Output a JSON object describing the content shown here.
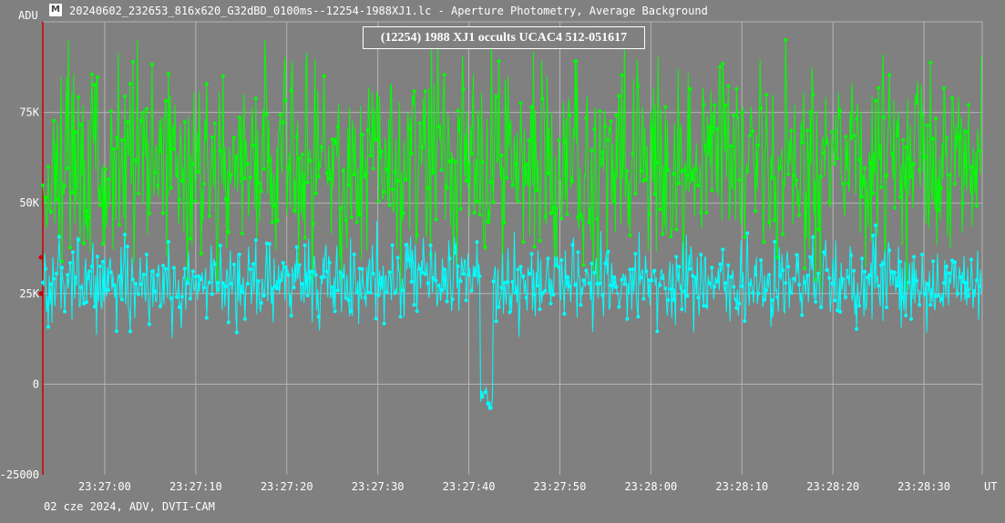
{
  "window": {
    "title": "20240602_232653_816x620_G32dBD_0100ms--12254-1988XJ1.lc - Aperture Photometry, Average Background",
    "icon": "lightcurve-app-icon"
  },
  "footer": "02 cze 2024, ADV, DVTI-CAM",
  "colors": {
    "background": "#808080",
    "grid": "#b4b4b4",
    "target_series": "#00ffff",
    "comparison_series": "#00ff00",
    "axis_marker": "#cc0000",
    "text": "#ffffff"
  },
  "chart_data": {
    "type": "line",
    "title": "(12254) 1988 XJ1 occults UCAC4 512-051617",
    "ylabel": "ADU",
    "xlabel": "UT",
    "ylim": [
      -25000,
      100000
    ],
    "xlim": [
      "23:26:53.2",
      "23:28:36.4"
    ],
    "y_ticks": [
      {
        "value": -25000,
        "label": "-25000"
      },
      {
        "value": 0,
        "label": "0"
      },
      {
        "value": 25000,
        "label": "25K"
      },
      {
        "value": 50000,
        "label": "50K"
      },
      {
        "value": 75000,
        "label": "75K"
      }
    ],
    "x_ticks": [
      "23:27:00",
      "23:27:10",
      "23:27:20",
      "23:27:30",
      "23:27:40",
      "23:27:50",
      "23:28:00",
      "23:28:10",
      "23:28:20",
      "23:28:30"
    ],
    "grid": true,
    "frame_interval_s": 0.1,
    "series": [
      {
        "role": "comparison",
        "color": "#00ff00",
        "mean_adu": 61000,
        "scatter_adu": 14000,
        "range_adu": [
          26000,
          95000
        ]
      },
      {
        "role": "target",
        "color": "#00ffff",
        "mean_adu": 28000,
        "scatter_adu": 5500,
        "range_adu": [
          7000,
          49000
        ],
        "events": [
          {
            "type": "occultation",
            "start": "23:27:41.3",
            "end": "23:27:42.6",
            "min_adu": -11000,
            "mean_adu": -4000
          }
        ]
      }
    ]
  }
}
